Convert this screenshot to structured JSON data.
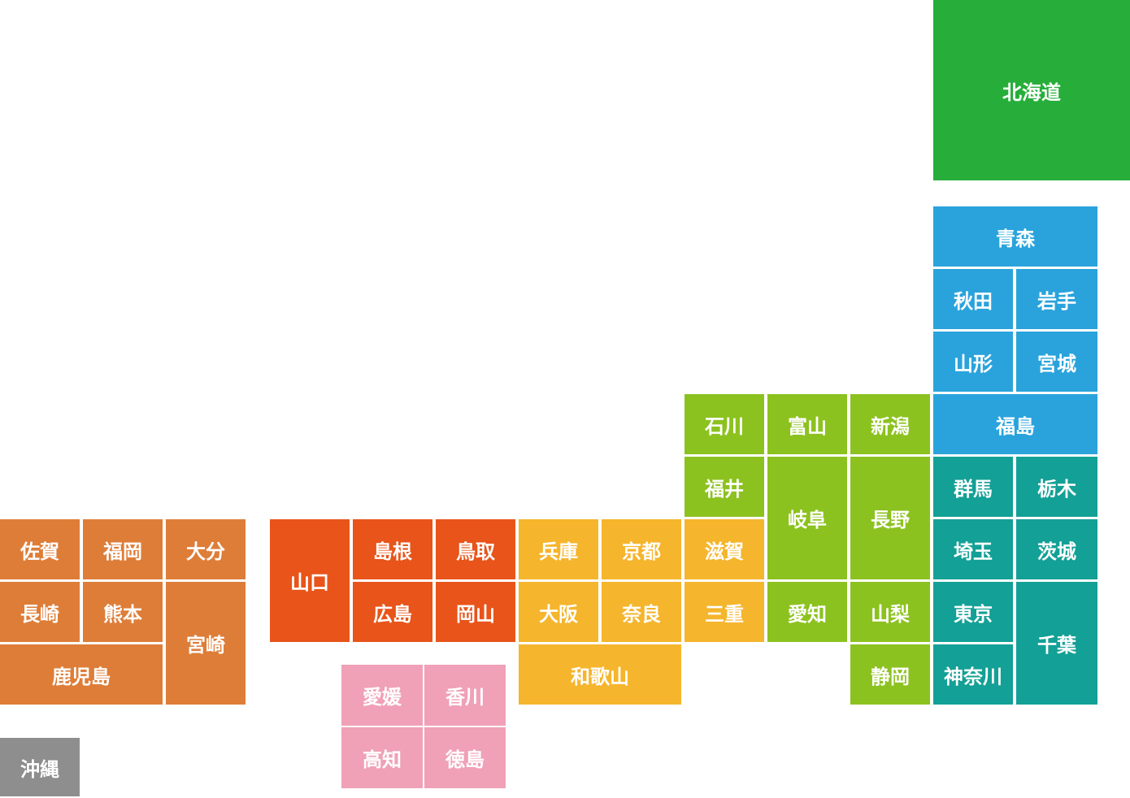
{
  "prefectures": [
    "北海道",
    "青森",
    "秋田",
    "岩手",
    "山形",
    "宮城",
    "福島",
    "群馬",
    "栃木",
    "埼玉",
    "茨城",
    "東京",
    "神奈川",
    "千葉",
    "石川",
    "富山",
    "新潟",
    "福井",
    "岐阜",
    "長野",
    "愛知",
    "山梨",
    "静岡",
    "兵庫",
    "京都",
    "滋賀",
    "大阪",
    "奈良",
    "三重",
    "和歌山",
    "山口",
    "島根",
    "鳥取",
    "広島",
    "岡山",
    "愛媛",
    "香川",
    "高知",
    "徳島",
    "佐賀",
    "福岡",
    "大分",
    "長崎",
    "熊本",
    "宮崎",
    "鹿児島",
    "沖縄"
  ]
}
